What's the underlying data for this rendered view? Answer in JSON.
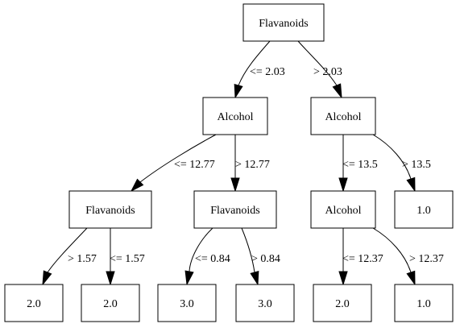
{
  "tree": {
    "nodes": [
      {
        "id": "n0",
        "label": "Flavanoids"
      },
      {
        "id": "n1",
        "label": "Alcohol"
      },
      {
        "id": "n2",
        "label": "Alcohol"
      },
      {
        "id": "n3",
        "label": "Flavanoids"
      },
      {
        "id": "n4",
        "label": "Flavanoids"
      },
      {
        "id": "n5",
        "label": "Alcohol"
      },
      {
        "id": "n6",
        "label": "1.0"
      },
      {
        "id": "n7",
        "label": "2.0"
      },
      {
        "id": "n8",
        "label": "2.0"
      },
      {
        "id": "n9",
        "label": "3.0"
      },
      {
        "id": "n10",
        "label": "3.0"
      },
      {
        "id": "n11",
        "label": "2.0"
      },
      {
        "id": "n12",
        "label": "1.0"
      }
    ],
    "edges": [
      {
        "id": "e0",
        "from": "n0",
        "to": "n1",
        "label": "<= 2.03"
      },
      {
        "id": "e1",
        "from": "n0",
        "to": "n2",
        "label": "> 2.03"
      },
      {
        "id": "e2",
        "from": "n1",
        "to": "n3",
        "label": "<= 12.77"
      },
      {
        "id": "e3",
        "from": "n1",
        "to": "n4",
        "label": "> 12.77"
      },
      {
        "id": "e4",
        "from": "n2",
        "to": "n5",
        "label": "<= 13.5"
      },
      {
        "id": "e5",
        "from": "n2",
        "to": "n6",
        "label": "> 13.5"
      },
      {
        "id": "e6",
        "from": "n3",
        "to": "n7",
        "label": "> 1.57"
      },
      {
        "id": "e7",
        "from": "n3",
        "to": "n8",
        "label": "<= 1.57"
      },
      {
        "id": "e8",
        "from": "n4",
        "to": "n9",
        "label": "<= 0.84"
      },
      {
        "id": "e9",
        "from": "n4",
        "to": "n10",
        "label": "> 0.84"
      },
      {
        "id": "e10",
        "from": "n5",
        "to": "n11",
        "label": "<= 12.37"
      },
      {
        "id": "e11",
        "from": "n5",
        "to": "n12",
        "label": "> 12.37"
      }
    ]
  }
}
